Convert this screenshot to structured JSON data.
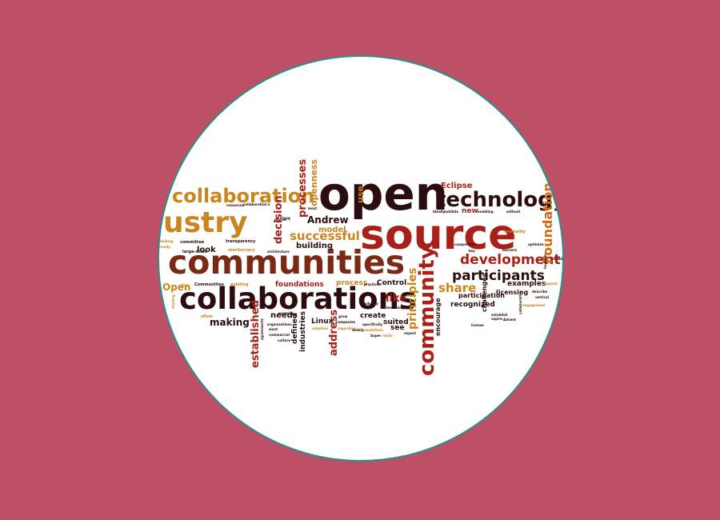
{
  "colors": {
    "background": "#bd4f67",
    "circle_fill": "#ffffff",
    "circle_border": "#2a8f88",
    "word_dark": "#2b0d10",
    "word_red": "#a82118",
    "word_brown": "#7a2a14",
    "word_gold": "#c8861c",
    "word_orange": "#d66a10"
  },
  "words": [
    {
      "id": "open",
      "text": "open",
      "color": "word_dark"
    },
    {
      "id": "source",
      "text": "source",
      "color": "word_red"
    },
    {
      "id": "communities",
      "text": "communities",
      "color": "word_brown"
    },
    {
      "id": "collaborations",
      "text": "collaborations",
      "color": "word_dark"
    },
    {
      "id": "collaboration",
      "text": "collaboration",
      "color": "word_gold"
    },
    {
      "id": "industry",
      "text": "ustry",
      "color": "word_gold"
    },
    {
      "id": "technology",
      "text": "technology",
      "color": "word_dark"
    },
    {
      "id": "community",
      "text": "community",
      "color": "word_red"
    },
    {
      "id": "development",
      "text": "development",
      "color": "word_red"
    },
    {
      "id": "participants",
      "text": "participants",
      "color": "word_dark"
    },
    {
      "id": "foundation",
      "text": "Foundation",
      "color": "word_orange"
    },
    {
      "id": "successful",
      "text": "successful",
      "color": "word_gold"
    },
    {
      "id": "principles",
      "text": "principles",
      "color": "word_gold"
    },
    {
      "id": "share",
      "text": "share",
      "color": "word_gold"
    },
    {
      "id": "making",
      "text": "making",
      "color": "word_dark"
    },
    {
      "id": "like",
      "text": "like",
      "color": "word_red"
    },
    {
      "id": "established",
      "text": "established",
      "color": "word_red"
    },
    {
      "id": "address",
      "text": "address",
      "color": "word_red"
    },
    {
      "id": "andrew",
      "text": "Andrew",
      "color": "word_dark"
    },
    {
      "id": "model",
      "text": "model",
      "color": "word_gold"
    },
    {
      "id": "decision",
      "text": "decision",
      "color": "word_red"
    },
    {
      "id": "processes",
      "text": "processes",
      "color": "word_red"
    },
    {
      "id": "openness",
      "text": "openness",
      "color": "word_gold"
    },
    {
      "id": "eclipse",
      "text": "Eclipse",
      "color": "word_red"
    },
    {
      "id": "use",
      "text": "use",
      "color": "word_gold"
    },
    {
      "id": "building",
      "text": "building",
      "color": "word_dark"
    },
    {
      "id": "look",
      "text": "look",
      "color": "word_dark"
    },
    {
      "id": "foundations",
      "text": "foundations",
      "color": "word_red"
    },
    {
      "id": "process",
      "text": "process",
      "color": "word_gold"
    },
    {
      "id": "control",
      "text": "Control",
      "color": "word_dark"
    },
    {
      "id": "needs",
      "text": "needs",
      "color": "word_dark"
    },
    {
      "id": "defined",
      "text": "defined",
      "color": "word_dark"
    },
    {
      "id": "industries",
      "text": "industries",
      "color": "word_dark"
    },
    {
      "id": "linux",
      "text": "Linux",
      "color": "word_dark"
    },
    {
      "id": "create",
      "text": "create",
      "color": "word_dark"
    },
    {
      "id": "suited",
      "text": "suited",
      "color": "word_dark"
    },
    {
      "id": "see",
      "text": "see",
      "color": "word_dark"
    },
    {
      "id": "encourage",
      "text": "encourage",
      "color": "word_dark"
    },
    {
      "id": "recognized",
      "text": "recognized",
      "color": "word_dark"
    },
    {
      "id": "participation",
      "text": "participation",
      "color": "word_dark"
    },
    {
      "id": "challenges",
      "text": "challenges",
      "color": "word_dark"
    },
    {
      "id": "examples",
      "text": "examples",
      "color": "word_dark"
    },
    {
      "id": "licensing",
      "text": "licensing",
      "color": "word_dark"
    },
    {
      "id": "new",
      "text": "new",
      "color": "word_red"
    },
    {
      "id": "open_small",
      "text": "Open",
      "color": "word_gold"
    },
    {
      "id": "architecture",
      "text": "architecture",
      "color": "word_dark"
    },
    {
      "id": "transparency",
      "text": "transparency",
      "color": "word_dark"
    },
    {
      "id": "meritocracy",
      "text": "meritocracy",
      "color": "word_gold"
    },
    {
      "id": "largescale",
      "text": "large-scale",
      "color": "word_dark"
    },
    {
      "id": "committee",
      "text": "committee",
      "color": "word_dark"
    },
    {
      "id": "communities_small",
      "text": "Communities",
      "color": "word_dark"
    },
    {
      "id": "existing",
      "text": "existing",
      "color": "word_gold"
    },
    {
      "id": "mentality",
      "text": "mentality",
      "color": "word_gold"
    },
    {
      "id": "often",
      "text": "often",
      "color": "word_gold"
    },
    {
      "id": "agreements",
      "text": "agreements",
      "color": "word_dark"
    },
    {
      "id": "organizations",
      "text": "organizations",
      "color": "word_dark"
    },
    {
      "id": "commercial",
      "text": "commercial",
      "color": "word_dark"
    },
    {
      "id": "want",
      "text": "want",
      "color": "word_dark"
    },
    {
      "id": "culture",
      "text": "culture",
      "color": "word_dark"
    },
    {
      "id": "adoption",
      "text": "adoption",
      "color": "word_gold"
    },
    {
      "id": "regarding",
      "text": "regarding",
      "color": "word_gold"
    },
    {
      "id": "specifically",
      "text": "specifically",
      "color": "word_dark"
    },
    {
      "id": "becoming",
      "text": "becoming",
      "color": "word_dark"
    },
    {
      "id": "widely",
      "text": "widely",
      "color": "word_dark"
    },
    {
      "id": "foundations_small",
      "text": "Foundations",
      "color": "word_gold"
    },
    {
      "id": "super",
      "text": "Super",
      "color": "word_dark"
    },
    {
      "id": "really",
      "text": "really",
      "color": "word_gold"
    },
    {
      "id": "expect",
      "text": "expect",
      "color": "word_dark"
    },
    {
      "id": "grow",
      "text": "grow",
      "color": "word_dark"
    },
    {
      "id": "companies",
      "text": "companies",
      "color": "word_dark"
    },
    {
      "id": "industry_small",
      "text": "industry",
      "color": "word_dark"
    },
    {
      "id": "practices",
      "text": "practices",
      "color": "word_dark"
    },
    {
      "id": "vertical",
      "text": "vertical",
      "color": "word_dark"
    },
    {
      "id": "engagement",
      "text": "engagement",
      "color": "word_gold"
    },
    {
      "id": "describe",
      "text": "describe",
      "color": "word_dark"
    },
    {
      "id": "license",
      "text": "license",
      "color": "word_dark"
    },
    {
      "id": "establish",
      "text": "establish",
      "color": "word_dark"
    },
    {
      "id": "aspire",
      "text": "aspire",
      "color": "word_dark"
    },
    {
      "id": "advent",
      "text": "Advent",
      "color": "word_dark"
    },
    {
      "id": "ideally",
      "text": "Ideally",
      "color": "word_dark"
    },
    {
      "id": "exhibits",
      "text": "exhibits",
      "color": "word_dark"
    },
    {
      "id": "enabling",
      "text": "enabling",
      "color": "word_dark"
    },
    {
      "id": "without",
      "text": "without",
      "color": "word_dark"
    },
    {
      "id": "competitors",
      "text": "competitors",
      "color": "word_dark"
    },
    {
      "id": "key",
      "text": "key",
      "color": "word_dark"
    },
    {
      "id": "barriers",
      "text": "barriers",
      "color": "word_dark"
    },
    {
      "id": "optimize",
      "text": "optimize",
      "color": "word_dark"
    },
    {
      "id": "however",
      "text": "however",
      "color": "word_dark"
    },
    {
      "id": "expand",
      "text": "expand",
      "color": "word_gold"
    },
    {
      "id": "broader",
      "text": "broader",
      "color": "word_dark"
    },
    {
      "id": "vital",
      "text": "vital",
      "color": "word_gold"
    },
    {
      "id": "starting",
      "text": "starting",
      "color": "word_gold"
    },
    {
      "id": "long",
      "text": "long",
      "color": "word_dark"
    },
    {
      "id": "already",
      "text": "already",
      "color": "word_gold"
    },
    {
      "id": "looking",
      "text": "looking",
      "color": "word_gold"
    },
    {
      "id": "resources",
      "text": "resources",
      "color": "word_dark"
    },
    {
      "id": "collaborations_small",
      "text": "collaboration's",
      "color": "word_dark"
    },
    {
      "id": "proven",
      "text": "proven",
      "color": "word_dark"
    },
    {
      "id": "most",
      "text": "most",
      "color": "word_dark"
    },
    {
      "id": "examine",
      "text": "examine",
      "color": "word_dark"
    },
    {
      "id": "collaborative",
      "text": "collaborative",
      "color": "word_dark"
    }
  ]
}
